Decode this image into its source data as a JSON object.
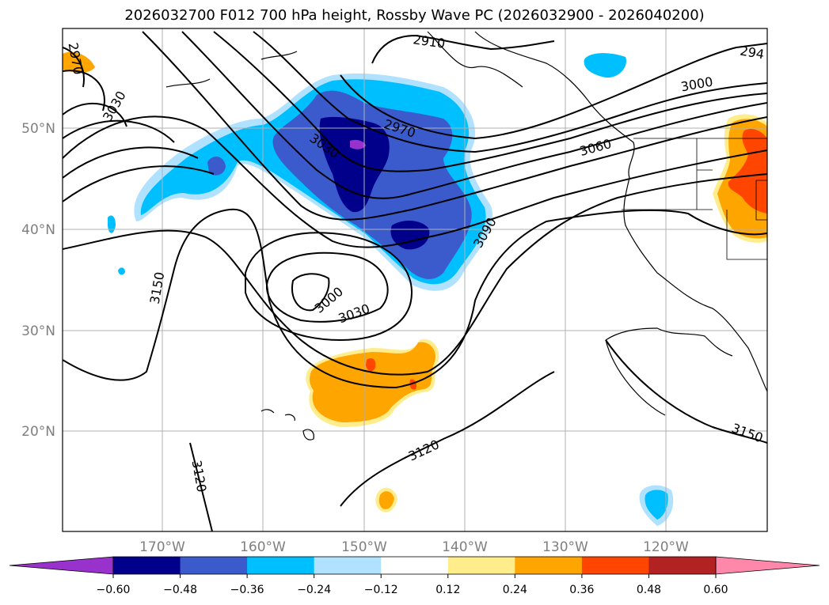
{
  "title": "2026032700 F012 700 hPa height, Rossby Wave PC (2026032900 - 2026040200)",
  "lat_labels": [
    "50°N",
    "40°N",
    "30°N",
    "20°N"
  ],
  "lon_labels": [
    "170°W",
    "160°W",
    "150°W",
    "140°W",
    "130°W",
    "120°W"
  ],
  "contour_labels": [
    "2910",
    "2970",
    "3000",
    "3030",
    "3060",
    "3090",
    "3120",
    "3150",
    "3000",
    "3030",
    "2970",
    "3030",
    "294",
    "3120",
    "3150"
  ],
  "colorbar": {
    "ticks": [
      "−0.60",
      "−0.48",
      "−0.36",
      "−0.24",
      "−0.12",
      "0.12",
      "0.24",
      "0.36",
      "0.48",
      "0.60"
    ],
    "colors": [
      "#9932cc",
      "#00008b",
      "#3b5bcc",
      "#00bfff",
      "#b0e2ff",
      "#ffffff",
      "#ffec8b",
      "#ffa500",
      "#ff4500",
      "#b22222",
      "#ff88aa"
    ]
  }
}
